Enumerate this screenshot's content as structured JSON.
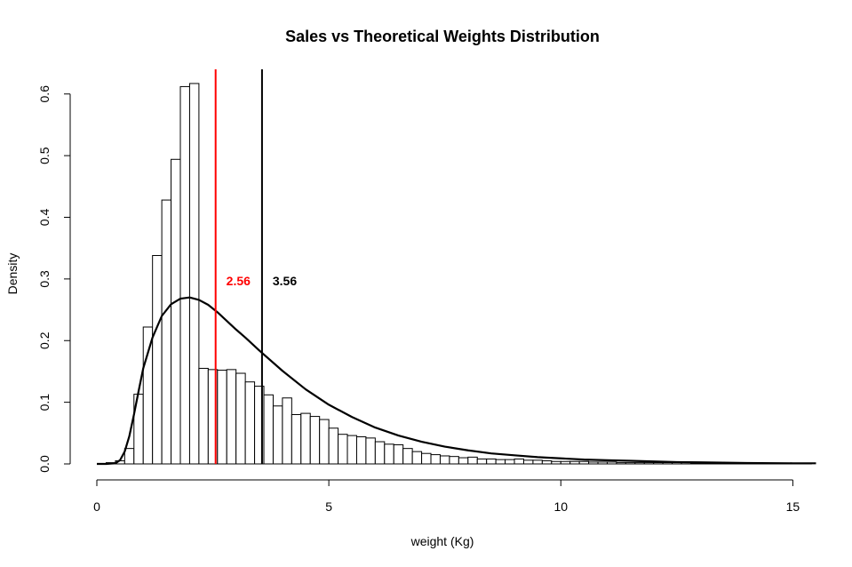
{
  "chart_data": {
    "type": "histogram",
    "title": "Sales vs Theoretical Weights Distribution",
    "xlabel": "weight (Kg)",
    "ylabel": "Density",
    "xlim": [
      0,
      15.5
    ],
    "ylim": [
      0,
      0.64
    ],
    "x_ticks": [
      0,
      5,
      10,
      15
    ],
    "x_tick_labels": [
      "0",
      "5",
      "10",
      "15"
    ],
    "y_ticks": [
      0,
      0.1,
      0.2,
      0.3,
      0.4,
      0.5,
      0.6
    ],
    "y_tick_labels": [
      "0.0",
      "0.1",
      "0.2",
      "0.3",
      "0.4",
      "0.5",
      "0.6"
    ],
    "grid": false,
    "legend": "none",
    "histogram": {
      "bin_width": 0.2,
      "start": 0,
      "values": [
        0,
        0.002,
        0.005,
        0.025,
        0.113,
        0.222,
        0.338,
        0.428,
        0.494,
        0.612,
        0.617,
        0.155,
        0.153,
        0.152,
        0.153,
        0.147,
        0.133,
        0.126,
        0.112,
        0.094,
        0.107,
        0.08,
        0.082,
        0.077,
        0.072,
        0.058,
        0.048,
        0.046,
        0.044,
        0.042,
        0.036,
        0.032,
        0.031,
        0.025,
        0.02,
        0.017,
        0.015,
        0.013,
        0.012,
        0.01,
        0.011,
        0.008,
        0.008,
        0.007,
        0.007,
        0.008,
        0.006,
        0.006,
        0.005,
        0.004,
        0.004,
        0.004,
        0.004,
        0.003,
        0.003,
        0.003,
        0.002,
        0.002,
        0.002,
        0.002,
        0.002,
        0.002,
        0.002,
        0.002,
        0.001,
        0.001,
        0.001,
        0.001,
        0.001,
        0.001,
        0.001,
        0.001,
        0.001,
        0.001,
        0.001,
        0.001,
        0.001,
        0.001,
        0.001,
        0.001,
        0.001,
        0.001,
        0.001,
        0.001,
        0.001,
        0.001,
        0.001,
        0.001,
        0.001,
        0.001,
        0.001,
        0.001,
        0.001,
        0.001,
        0.001,
        0.001,
        0.001,
        0.001,
        0.001,
        0.001,
        0.001,
        0.001,
        0.001,
        0.001,
        0.001,
        0.001,
        0.001,
        0.001,
        0.001,
        0.001,
        0.001,
        0.001,
        0.001,
        0.001,
        0.001,
        0.001,
        0.001,
        0.001,
        0.001,
        0.001,
        0.001,
        0.001,
        0.001,
        0.001,
        0.001,
        0.001,
        0.001,
        0.001,
        0.001,
        0.001,
        0.001,
        0.001,
        0.001,
        0.001,
        0.001,
        0.001,
        0.001,
        0.001,
        0.001,
        0.001,
        0.001,
        0.001,
        0.001,
        0.001,
        0.001,
        0.001,
        0.001,
        0.001,
        0.001,
        0.001,
        0.001
      ],
      "fill": "#ffffff",
      "stroke": "#000000"
    },
    "theoretical_curve": {
      "x": [
        0,
        0.2,
        0.4,
        0.5,
        0.6,
        0.7,
        0.8,
        0.9,
        1.0,
        1.2,
        1.4,
        1.6,
        1.8,
        2.0,
        2.2,
        2.4,
        2.6,
        2.8,
        3.0,
        3.2,
        3.5,
        4.0,
        4.5,
        5.0,
        5.5,
        6.0,
        6.5,
        7.0,
        7.5,
        8.0,
        8.5,
        9.0,
        9.5,
        10.0,
        10.5,
        11.0,
        11.5,
        12.0,
        12.5,
        13.0,
        13.5,
        14.0,
        15.0,
        15.5
      ],
      "y": [
        0,
        0,
        0.001,
        0.006,
        0.02,
        0.045,
        0.08,
        0.118,
        0.155,
        0.205,
        0.24,
        0.259,
        0.268,
        0.27,
        0.266,
        0.258,
        0.246,
        0.232,
        0.218,
        0.205,
        0.184,
        0.151,
        0.121,
        0.096,
        0.076,
        0.059,
        0.046,
        0.036,
        0.028,
        0.022,
        0.017,
        0.014,
        0.011,
        0.009,
        0.007,
        0.006,
        0.005,
        0.004,
        0.003,
        0.0025,
        0.002,
        0.0015,
        0.001,
        0.001
      ],
      "color": "#000000"
    },
    "vlines": [
      {
        "x": 2.56,
        "color": "#ff0000",
        "label": "2.56",
        "label_x": 3.05,
        "label_y": 0.297
      },
      {
        "x": 3.56,
        "color": "#000000",
        "label": "3.56",
        "label_x": 4.05,
        "label_y": 0.297
      }
    ]
  }
}
